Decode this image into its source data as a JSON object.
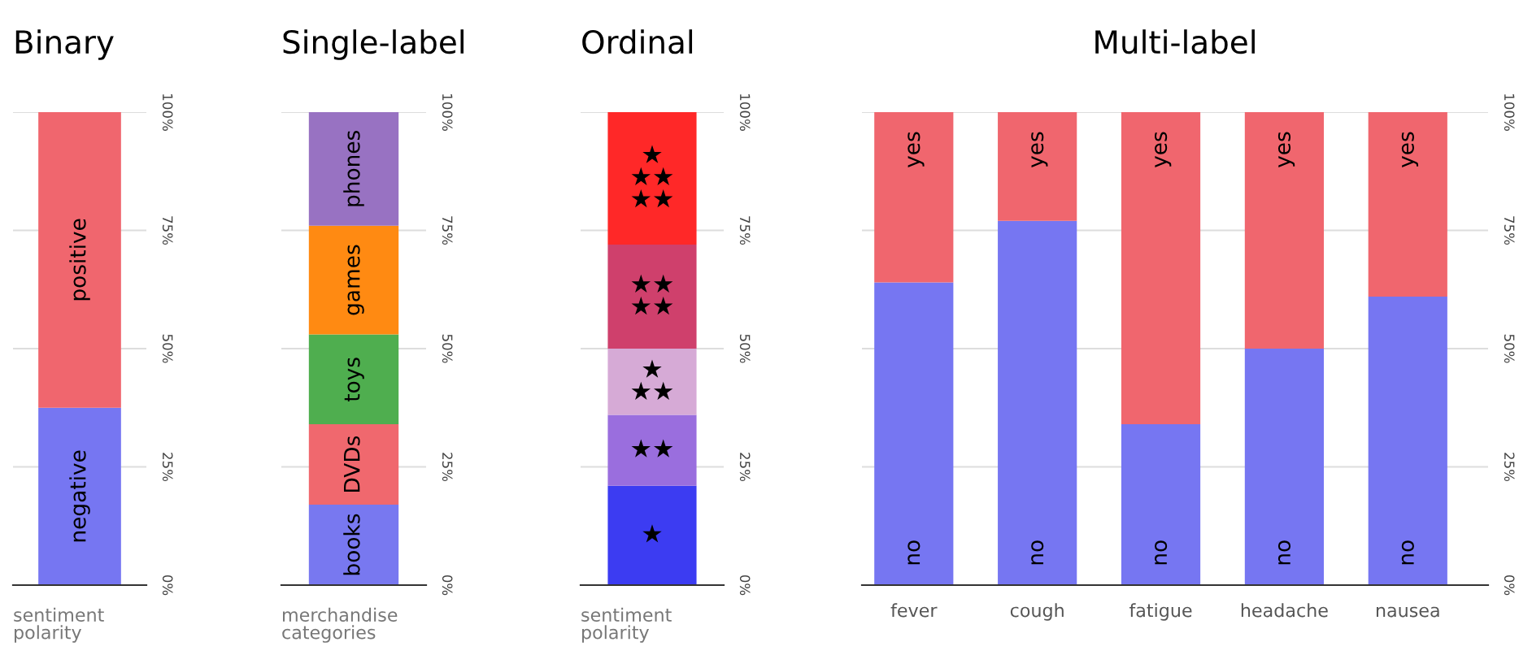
{
  "chart_data": [
    {
      "type": "bar",
      "title": "Binary",
      "xlabel": "sentiment\npolarity",
      "categories": [
        null
      ],
      "stacked": true,
      "legend": false,
      "grid": "y",
      "ylim": [
        0,
        100
      ],
      "yticks": [
        {
          "value": 0,
          "label": "0%"
        },
        {
          "value": 25,
          "label": "25%"
        },
        {
          "value": 50,
          "label": "50%"
        },
        {
          "value": 75,
          "label": "75%"
        },
        {
          "value": 100,
          "label": "100%"
        }
      ],
      "series": [
        {
          "name": "negative",
          "color": "#7676f2",
          "values": [
            37.5
          ]
        },
        {
          "name": "positive",
          "color": "#f0666e",
          "values": [
            62.5
          ]
        }
      ]
    },
    {
      "type": "bar",
      "title": "Single-label",
      "xlabel": "merchandise\ncategories",
      "categories": [
        null
      ],
      "stacked": true,
      "legend": false,
      "grid": "y",
      "ylim": [
        0,
        100
      ],
      "yticks": [
        {
          "value": 0,
          "label": "0%"
        },
        {
          "value": 25,
          "label": "25%"
        },
        {
          "value": 50,
          "label": "50%"
        },
        {
          "value": 75,
          "label": "75%"
        },
        {
          "value": 100,
          "label": "100%"
        }
      ],
      "series": [
        {
          "name": "books",
          "color": "#7878f0",
          "values": [
            17
          ]
        },
        {
          "name": "DVDs",
          "color": "#f0686e",
          "values": [
            17
          ]
        },
        {
          "name": "toys",
          "color": "#4fae4f",
          "values": [
            19
          ]
        },
        {
          "name": "games",
          "color": "#ff8a12",
          "values": [
            23
          ]
        },
        {
          "name": "phones",
          "color": "#9872c2",
          "values": [
            24
          ]
        }
      ]
    },
    {
      "type": "bar",
      "title": "Ordinal",
      "xlabel": "sentiment\npolarity",
      "categories": [
        null
      ],
      "stacked": true,
      "legend": false,
      "grid": "y",
      "ylim": [
        0,
        100
      ],
      "yticks": [
        {
          "value": 0,
          "label": "0%"
        },
        {
          "value": 25,
          "label": "25%"
        },
        {
          "value": 50,
          "label": "50%"
        },
        {
          "value": 75,
          "label": "75%"
        },
        {
          "value": 100,
          "label": "100%"
        }
      ],
      "series": [
        {
          "name": "★",
          "color": "#3c3cf2",
          "values": [
            21
          ]
        },
        {
          "name": "★★",
          "color": "#9a6ede",
          "values": [
            15
          ]
        },
        {
          "name": "★\n★★",
          "color": "#d6aad6",
          "values": [
            14
          ]
        },
        {
          "name": "★★\n★★",
          "color": "#cf406c",
          "values": [
            22
          ]
        },
        {
          "name": "★\n★★\n★★",
          "color": "#ff2828",
          "values": [
            28
          ]
        }
      ]
    },
    {
      "type": "bar",
      "title": "Multi-label",
      "categories": [
        "fever",
        "cough",
        "fatigue",
        "headache",
        "nausea"
      ],
      "stacked": true,
      "legend": false,
      "grid": "y",
      "ylim": [
        0,
        100
      ],
      "yticks": [
        {
          "value": 0,
          "label": "0%"
        },
        {
          "value": 25,
          "label": "25%"
        },
        {
          "value": 50,
          "label": "50%"
        },
        {
          "value": 75,
          "label": "75%"
        },
        {
          "value": 100,
          "label": "100%"
        }
      ],
      "series": [
        {
          "name": "no",
          "color": "#7676f2",
          "values": [
            64,
            77,
            34,
            50,
            61
          ]
        },
        {
          "name": "yes",
          "color": "#f0666e",
          "values": [
            36,
            23,
            66,
            50,
            39
          ]
        }
      ]
    }
  ]
}
